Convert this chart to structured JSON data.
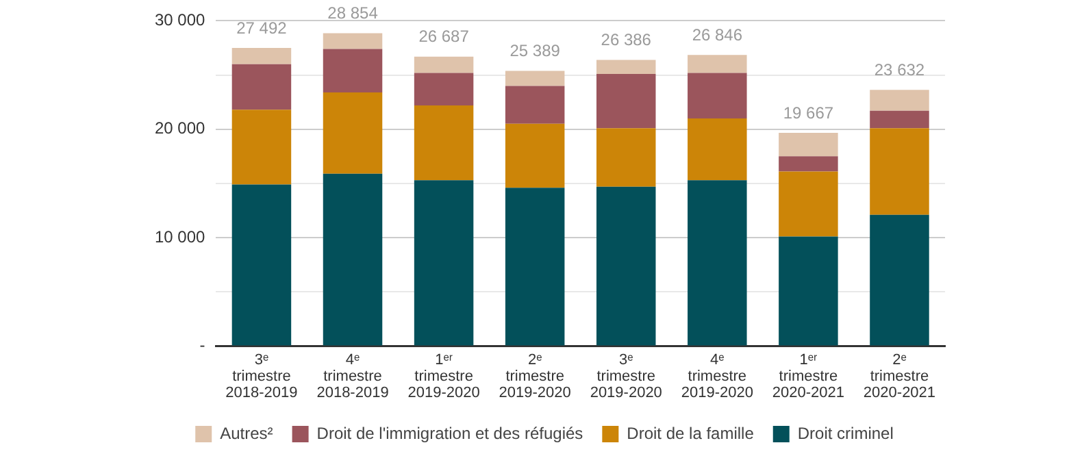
{
  "chart_data": {
    "type": "bar",
    "stacked": true,
    "categories": [
      "3ᵉ trimestre 2018-2019",
      "4ᵉ trimestre 2018-2019",
      "1ᵉʳ trimestre 2019-2020",
      "2ᵉ trimestre 2019-2020",
      "3ᵉ trimestre 2019-2020",
      "4ᵉ trimestre 2019-2020",
      "1ᵉʳ trimestre 2020-2021",
      "2ᵉ trimestre 2020-2021"
    ],
    "series": [
      {
        "name": "Droit criminel",
        "color": "#03505a",
        "values": [
          14900,
          15900,
          15300,
          14600,
          14700,
          15300,
          10100,
          12100
        ]
      },
      {
        "name": "Droit de la famille",
        "color": "#cc8508",
        "values": [
          6900,
          7500,
          6900,
          5900,
          5400,
          5700,
          6000,
          8000
        ]
      },
      {
        "name": "Droit de l'immigration et des réfugiés",
        "color": "#9b555c",
        "values": [
          4200,
          4000,
          3000,
          3500,
          5000,
          4200,
          1400,
          1600
        ]
      },
      {
        "name": "Autres²",
        "color": "#dfc3ab",
        "values": [
          1492,
          1454,
          1487,
          1389,
          1286,
          1646,
          2167,
          1932
        ]
      }
    ],
    "totals": [
      "27 492",
      "28 854",
      "26 687",
      "25 389",
      "26 386",
      "26 846",
      "19 667",
      "23 632"
    ],
    "ylim": [
      0,
      30000
    ],
    "yticks": [
      {
        "value": 0,
        "label": "-"
      },
      {
        "value": 5000,
        "label": null
      },
      {
        "value": 10000,
        "label": "10 000"
      },
      {
        "value": 15000,
        "label": null
      },
      {
        "value": 20000,
        "label": "20 000"
      },
      {
        "value": 25000,
        "label": null
      },
      {
        "value": 30000,
        "label": "30 000"
      }
    ],
    "grid": "y",
    "legend": "bottom"
  }
}
